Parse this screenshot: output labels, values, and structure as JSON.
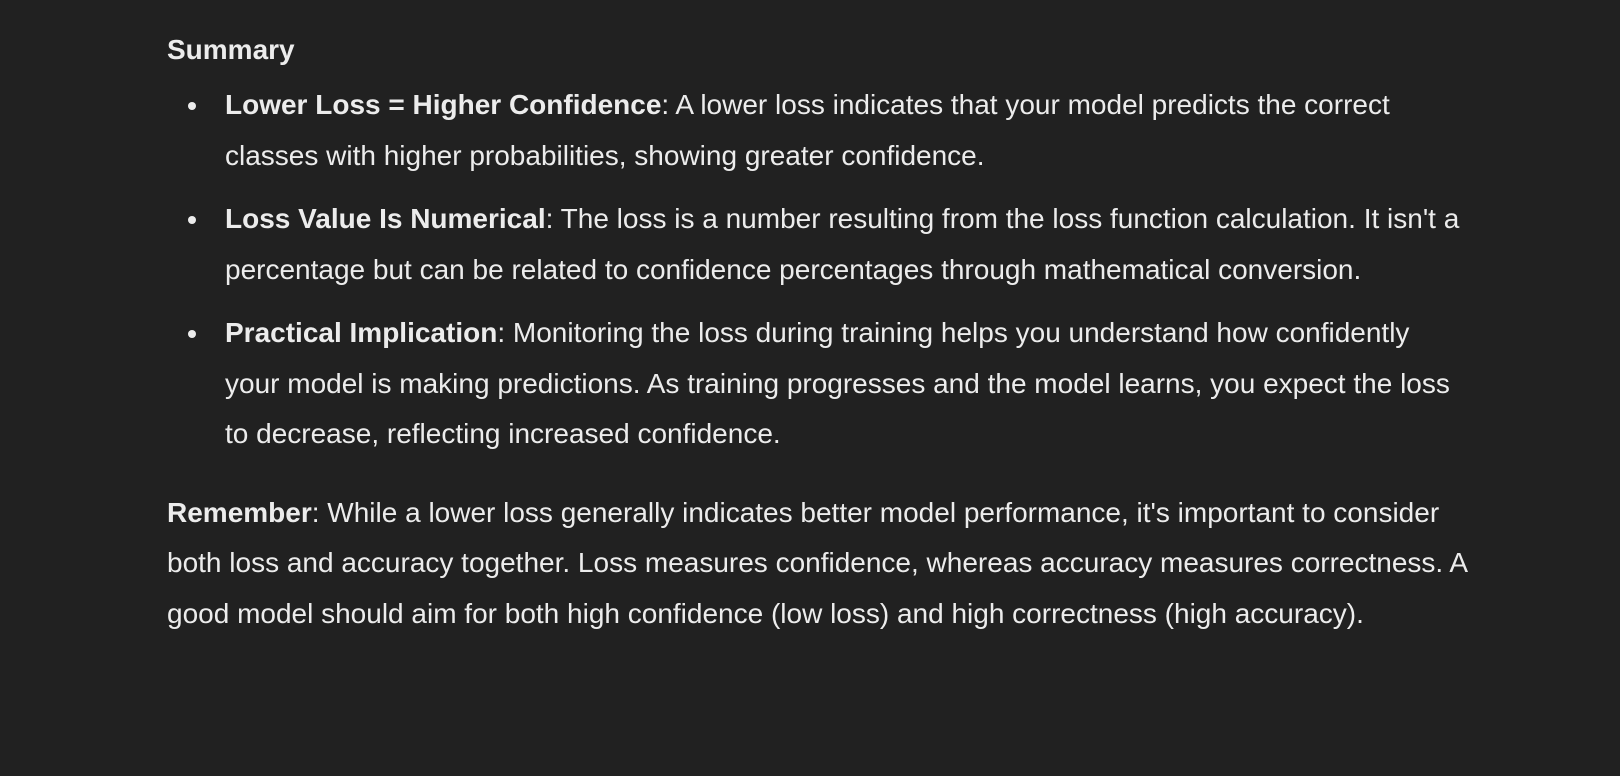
{
  "heading": "Summary",
  "bullets": [
    {
      "term": "Lower Loss = Higher Confidence",
      "text": ": A lower loss indicates that your model predicts the correct classes with higher probabilities, showing greater confidence."
    },
    {
      "term": "Loss Value Is Numerical",
      "text": ": The loss is a number resulting from the loss function calculation. It isn't a percentage but can be related to confidence percentages through mathematical conversion."
    },
    {
      "term": "Practical Implication",
      "text": ": Monitoring the loss during training helps you understand how confidently your model is making predictions. As training progresses and the model learns, you expect the loss to decrease, reflecting increased confidence."
    }
  ],
  "remember": {
    "term": "Remember",
    "text": ": While a lower loss generally indicates better model performance, it's important to consider both loss and accuracy together. Loss measures confidence, whereas accuracy measures correctness. A good model should aim for both high confidence (low loss) and high correctness (high accuracy)."
  }
}
